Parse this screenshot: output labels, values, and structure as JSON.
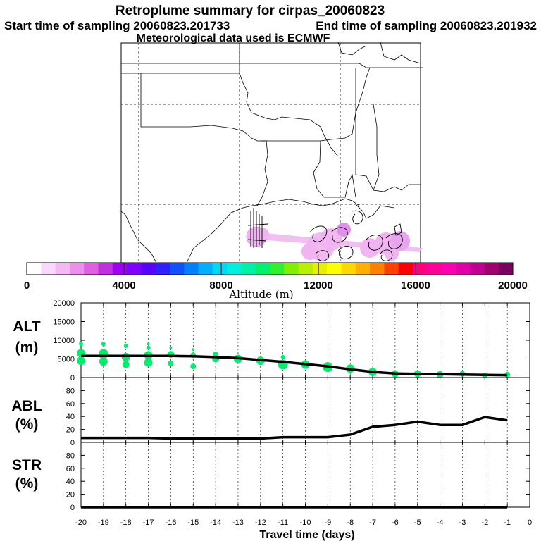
{
  "header": {
    "title": "Retroplume summary for cirpas_20060823",
    "start_label": "Start time of sampling 20060823.201733",
    "end_label": "End time of sampling 20060823.201932",
    "met_label": "Meteorological data used is ECMWF"
  },
  "colorbar": {
    "label": "Altitude (m)",
    "ticks": [
      "0",
      "4000",
      "8000",
      "12000",
      "16000",
      "20000"
    ],
    "colors": [
      "#ffffff",
      "#fbd8fb",
      "#f4b8f4",
      "#ed90ed",
      "#e060e0",
      "#c030e0",
      "#a000f0",
      "#8000ff",
      "#5a00ff",
      "#3020ff",
      "#1050ff",
      "#0080ff",
      "#00b0ff",
      "#00d8f8",
      "#00f0e0",
      "#00f0a8",
      "#00f070",
      "#30f030",
      "#80f000",
      "#b8f000",
      "#e8f000",
      "#ffff00",
      "#ffd800",
      "#ffb000",
      "#ff8000",
      "#ff4000",
      "#ff0000",
      "#ff0080",
      "#ff0098",
      "#ff00b0",
      "#e000a8",
      "#c00090",
      "#a00070",
      "#7a0060"
    ]
  },
  "colors": {
    "plume": "#f0b4f0",
    "plume_edge": "#d890e0",
    "scatter": "#00ee6e",
    "line": "#000000"
  },
  "chart_data": [
    {
      "type": "line",
      "panel": "ALT",
      "label": "ALT\n(m)",
      "ylim": [
        0,
        20000
      ],
      "yticks": [
        "20000",
        "15000",
        "10000",
        "5000",
        "0"
      ],
      "x": [
        -20,
        -19,
        -18,
        -17,
        -16,
        -15,
        -14,
        -13,
        -12,
        -11,
        -10,
        -9,
        -8,
        -7,
        -6,
        -5,
        -4,
        -3,
        -2,
        -1
      ],
      "values": [
        5800,
        5800,
        5800,
        5800,
        5800,
        5700,
        5500,
        5200,
        4700,
        4200,
        3600,
        3000,
        2200,
        1500,
        1100,
        1000,
        900,
        800,
        700,
        650
      ],
      "scatter": [
        {
          "x": -20,
          "y": 4500,
          "r": 6
        },
        {
          "x": -20,
          "y": 6500,
          "r": 6
        },
        {
          "x": -20,
          "y": 9000,
          "r": 3
        },
        {
          "x": -19,
          "y": 4300,
          "r": 6
        },
        {
          "x": -19,
          "y": 6300,
          "r": 7
        },
        {
          "x": -19,
          "y": 9000,
          "r": 3
        },
        {
          "x": -18,
          "y": 3500,
          "r": 5
        },
        {
          "x": -18,
          "y": 5500,
          "r": 6
        },
        {
          "x": -18,
          "y": 8500,
          "r": 3
        },
        {
          "x": -17,
          "y": 4000,
          "r": 6
        },
        {
          "x": -17,
          "y": 6000,
          "r": 6
        },
        {
          "x": -17,
          "y": 8000,
          "r": 3
        },
        {
          "x": -17,
          "y": 9000,
          "r": 2
        },
        {
          "x": -16,
          "y": 3800,
          "r": 4
        },
        {
          "x": -16,
          "y": 6200,
          "r": 5
        },
        {
          "x": -16,
          "y": 8000,
          "r": 2
        },
        {
          "x": -15,
          "y": 3000,
          "r": 4
        },
        {
          "x": -15,
          "y": 6000,
          "r": 4
        },
        {
          "x": -15,
          "y": 7500,
          "r": 2
        },
        {
          "x": -14,
          "y": 5000,
          "r": 5
        },
        {
          "x": -14,
          "y": 6200,
          "r": 4
        },
        {
          "x": -13,
          "y": 5000,
          "r": 6
        },
        {
          "x": -12,
          "y": 4500,
          "r": 6
        },
        {
          "x": -11,
          "y": 3500,
          "r": 7
        },
        {
          "x": -11,
          "y": 5500,
          "r": 3
        },
        {
          "x": -10,
          "y": 3500,
          "r": 6
        },
        {
          "x": -9,
          "y": 2800,
          "r": 7
        },
        {
          "x": -8,
          "y": 2400,
          "r": 6
        },
        {
          "x": -7,
          "y": 1500,
          "r": 6
        },
        {
          "x": -6,
          "y": 1000,
          "r": 5
        },
        {
          "x": -5,
          "y": 1000,
          "r": 5
        },
        {
          "x": -4,
          "y": 800,
          "r": 5
        },
        {
          "x": -3,
          "y": 1000,
          "r": 4
        },
        {
          "x": -2,
          "y": 600,
          "r": 4
        },
        {
          "x": -1,
          "y": 800,
          "r": 4
        }
      ]
    },
    {
      "type": "line",
      "panel": "ABL",
      "label": "ABL\n(%)",
      "ylim": [
        0,
        100
      ],
      "yticks": [
        "80",
        "60",
        "40",
        "20",
        "0"
      ],
      "x": [
        -20,
        -19,
        -18,
        -17,
        -16,
        -15,
        -14,
        -13,
        -12,
        -11,
        -10,
        -9,
        -8,
        -7,
        -6,
        -5,
        -4,
        -3,
        -2,
        -1
      ],
      "values": [
        7,
        7,
        7,
        7,
        6,
        6,
        6,
        6,
        6,
        8,
        8,
        8,
        12,
        24,
        27,
        32,
        27,
        27,
        39,
        34
      ]
    },
    {
      "type": "line",
      "panel": "STR",
      "label": "STR\n(%)",
      "ylim": [
        0,
        100
      ],
      "yticks": [
        "80",
        "60",
        "40",
        "20",
        "0"
      ],
      "x": [
        -20,
        -19,
        -18,
        -17,
        -16,
        -15,
        -14,
        -13,
        -12,
        -11,
        -10,
        -9,
        -8,
        -7,
        -6,
        -5,
        -4,
        -3,
        -2,
        -1
      ],
      "values": [
        0,
        0,
        0,
        0,
        0,
        0,
        0,
        0,
        0,
        0,
        0,
        0,
        0,
        0,
        0,
        0,
        0,
        0,
        0,
        0
      ]
    }
  ],
  "x_axis": {
    "label": "Travel time (days)",
    "ticks": [
      "-20",
      "-19",
      "-18",
      "-17",
      "-16",
      "-15",
      "-14",
      "-13",
      "-12",
      "-11",
      "-10",
      "-9",
      "-8",
      "-7",
      "-6",
      "-5",
      "-4",
      "-3",
      "-2",
      "-1",
      "0"
    ]
  }
}
